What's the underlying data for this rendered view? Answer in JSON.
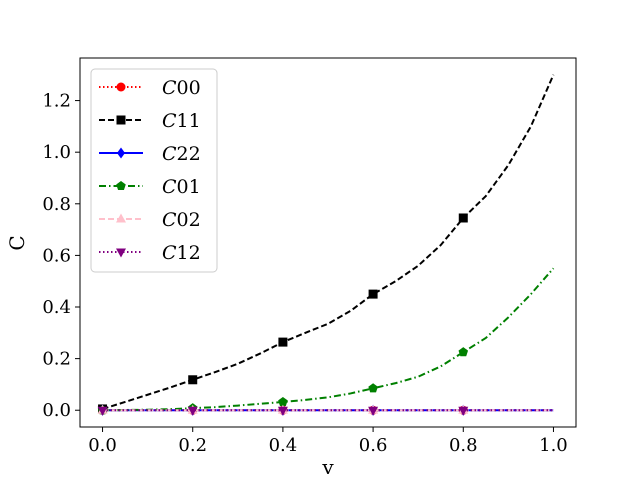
{
  "chart_data": {
    "type": "line",
    "title": "",
    "xlabel": "v",
    "ylabel": "C",
    "xlim": [
      -0.05,
      1.05
    ],
    "ylim": [
      -0.065,
      1.365
    ],
    "xticks": [
      0.0,
      0.2,
      0.4,
      0.6,
      0.8,
      1.0
    ],
    "xtick_labels": [
      "0.0",
      "0.2",
      "0.4",
      "0.6",
      "0.8",
      "1.0"
    ],
    "yticks": [
      0.0,
      0.2,
      0.4,
      0.6,
      0.8,
      1.0,
      1.2
    ],
    "ytick_labels": [
      "0.0",
      "0.2",
      "0.4",
      "0.6",
      "0.8",
      "1.0",
      "1.2"
    ],
    "grid": false,
    "legend_position": "top-left",
    "x": [
      0.0,
      0.05,
      0.1,
      0.15,
      0.2,
      0.25,
      0.3,
      0.35,
      0.4,
      0.45,
      0.5,
      0.55,
      0.6,
      0.65,
      0.7,
      0.75,
      0.8,
      0.85,
      0.9,
      0.95,
      1.0
    ],
    "marker_x": [
      0.0,
      0.2,
      0.4,
      0.6,
      0.8
    ],
    "series": [
      {
        "name": "C00",
        "legend_label": "C00",
        "color": "#ff0000",
        "linestyle": "dotted",
        "marker": "circle",
        "values": [
          0,
          0,
          0,
          0,
          0,
          0,
          0,
          0,
          0,
          0,
          0,
          0,
          0,
          0,
          0,
          0,
          0,
          0,
          0,
          0,
          0
        ],
        "marker_values": [
          0,
          0,
          0,
          0,
          0
        ]
      },
      {
        "name": "C11",
        "legend_label": "C11",
        "color": "#000000",
        "linestyle": "dashed",
        "marker": "square",
        "values": [
          0.005,
          0.032,
          0.06,
          0.088,
          0.118,
          0.148,
          0.18,
          0.22,
          0.264,
          0.3,
          0.335,
          0.385,
          0.45,
          0.5,
          0.56,
          0.64,
          0.745,
          0.83,
          0.95,
          1.1,
          1.3
        ],
        "marker_values": [
          0.005,
          0.118,
          0.264,
          0.45,
          0.745
        ]
      },
      {
        "name": "C22",
        "legend_label": "C22",
        "color": "#0000ff",
        "linestyle": "solid",
        "marker": "diamond",
        "values": [
          0,
          0,
          0,
          0,
          0,
          0,
          0,
          0,
          0,
          0,
          0,
          0,
          0,
          0,
          0,
          0,
          0,
          0,
          0,
          0,
          0
        ],
        "marker_values": [
          0,
          0,
          0,
          0,
          0
        ]
      },
      {
        "name": "C01",
        "legend_label": "C01",
        "color": "#008000",
        "linestyle": "dashdot",
        "marker": "pentagon",
        "values": [
          0,
          0.001,
          0.002,
          0.004,
          0.008,
          0.012,
          0.018,
          0.025,
          0.032,
          0.04,
          0.05,
          0.065,
          0.085,
          0.105,
          0.13,
          0.17,
          0.225,
          0.28,
          0.36,
          0.45,
          0.55
        ],
        "marker_values": [
          0,
          0.008,
          0.032,
          0.085,
          0.225
        ]
      },
      {
        "name": "C02",
        "legend_label": "C02",
        "color": "#ffc0cb",
        "linestyle": "dashed",
        "marker": "triangle-up",
        "values": [
          0,
          0,
          0,
          0,
          0,
          0,
          0,
          0,
          0,
          0,
          0,
          0,
          0,
          0,
          0,
          0,
          0,
          0,
          0,
          0,
          0
        ],
        "marker_values": [
          0,
          0,
          0,
          0,
          0
        ]
      },
      {
        "name": "C12",
        "legend_label": "C12",
        "color": "#800080",
        "linestyle": "dotted",
        "marker": "triangle-down",
        "values": [
          0,
          0,
          0,
          0,
          0,
          0,
          0,
          0,
          0,
          0,
          0,
          0,
          0,
          0,
          0,
          0,
          0,
          0,
          0,
          0,
          0
        ],
        "marker_values": [
          0,
          0,
          0,
          0,
          0
        ]
      }
    ]
  }
}
